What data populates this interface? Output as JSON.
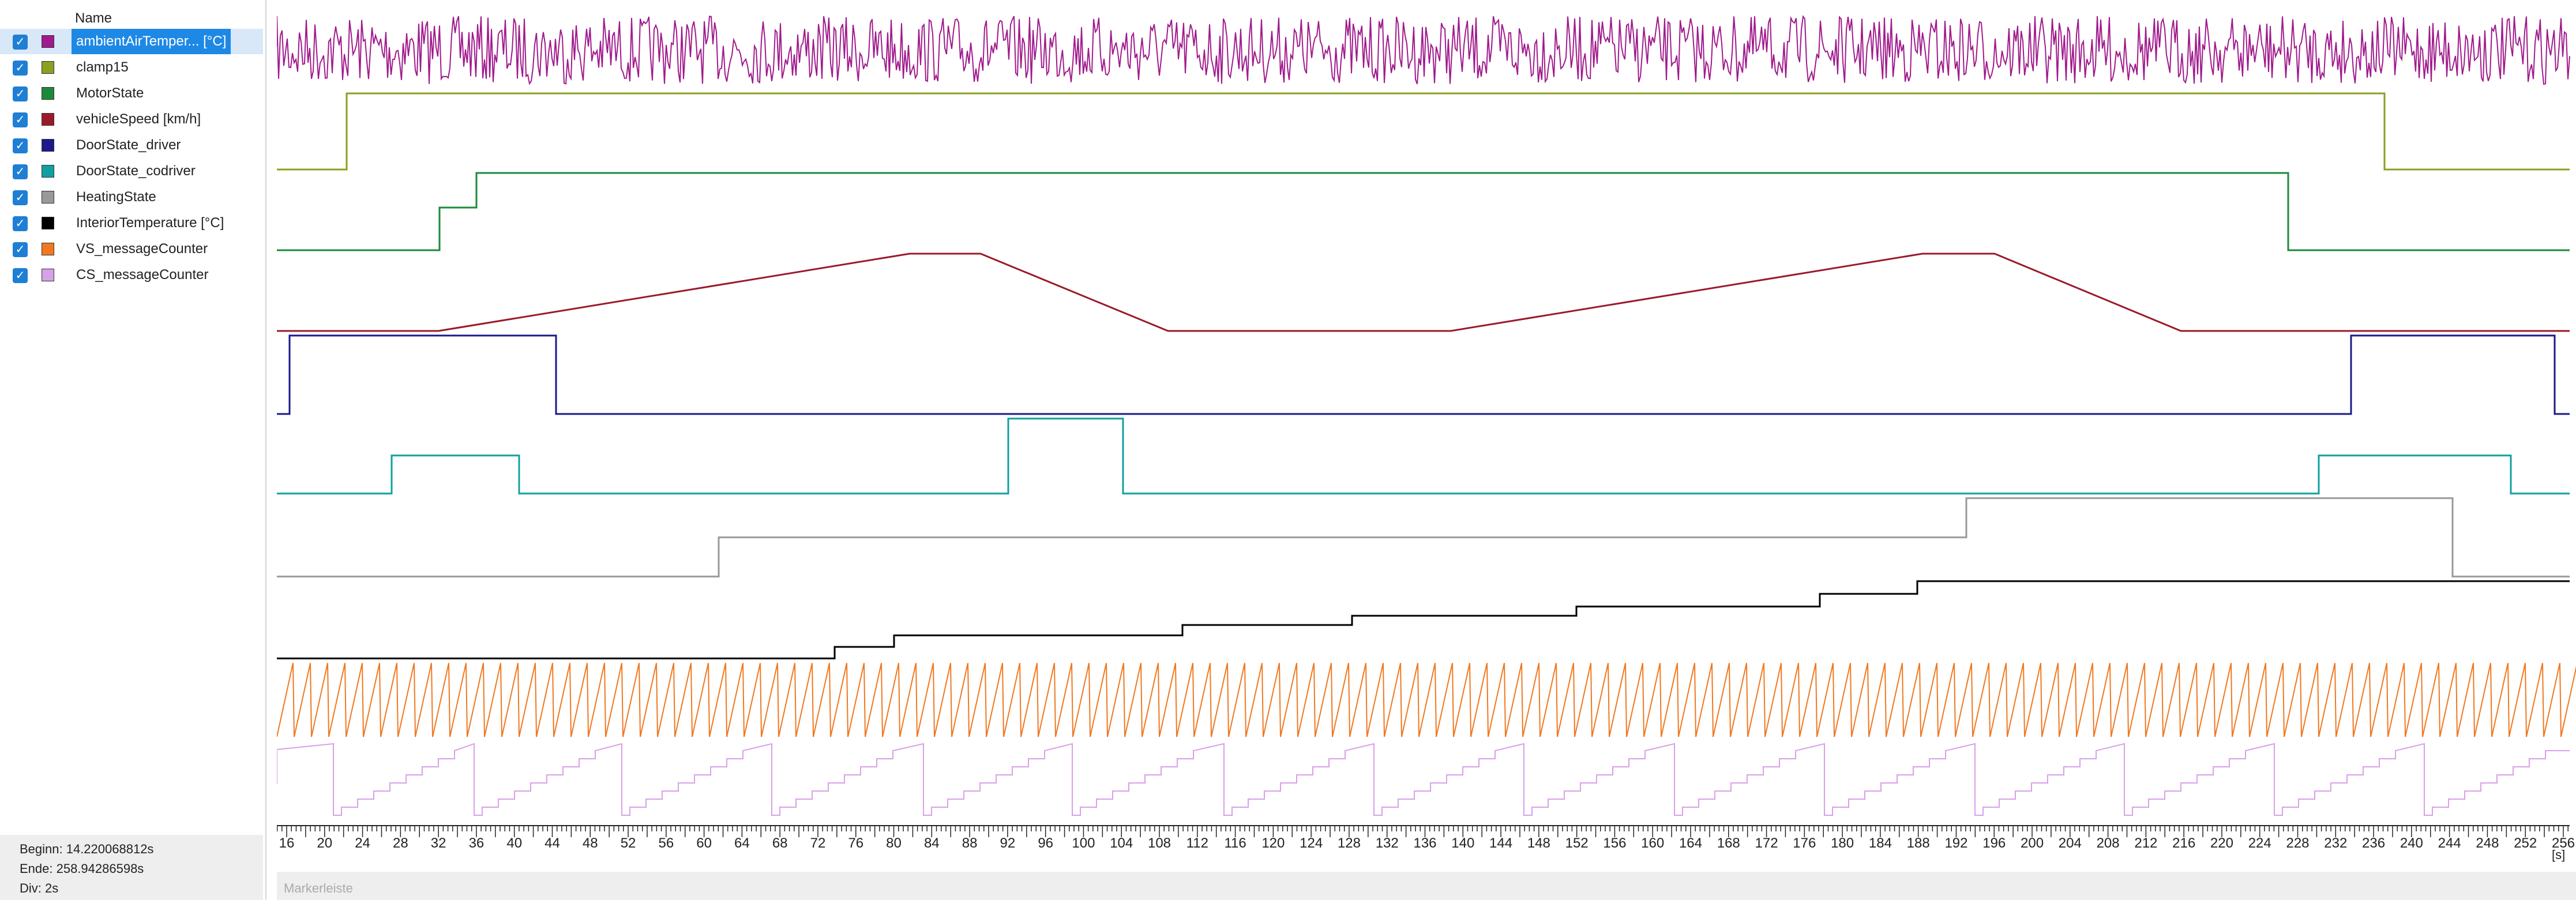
{
  "signal_list": {
    "header": "Name",
    "signals": [
      {
        "label": "ambientAirTemper... [°C]",
        "color": "#a01a8c",
        "checked": true,
        "selected": true
      },
      {
        "label": "clamp15",
        "color": "#8aa020",
        "checked": true
      },
      {
        "label": "MotorState",
        "color": "#1a8a3a",
        "checked": true
      },
      {
        "label": "vehicleSpeed [km/h]",
        "color": "#9a1a2a",
        "checked": true
      },
      {
        "label": "DoorState_driver",
        "color": "#1a1a8a",
        "checked": true
      },
      {
        "label": "DoorState_codriver",
        "color": "#10a0a0",
        "checked": true
      },
      {
        "label": "HeatingState",
        "color": "#999999",
        "checked": true
      },
      {
        "label": "InteriorTemperature [°C]",
        "color": "#000000",
        "checked": true
      },
      {
        "label": "VS_messageCounter",
        "color": "#f07820",
        "checked": true
      },
      {
        "label": "CS_messageCounter",
        "color": "#d8a0e8",
        "checked": true
      }
    ]
  },
  "status": {
    "begin": "Beginn: 14.220068812s",
    "end": "Ende: 258.94286598s",
    "div": "Div: 2s"
  },
  "time_axis": {
    "unit": "[s]",
    "ticks": [
      "16",
      "20",
      "24",
      "28",
      "32",
      "36",
      "40",
      "44",
      "48",
      "52",
      "56",
      "60",
      "64",
      "68",
      "72",
      "76",
      "80",
      "84",
      "88",
      "92",
      "96",
      "100",
      "104",
      "108",
      "112",
      "116",
      "120",
      "124",
      "128",
      "132",
      "136",
      "140",
      "144",
      "148",
      "152",
      "156",
      "160",
      "164",
      "168",
      "172",
      "176",
      "180",
      "184",
      "188",
      "192",
      "196",
      "200",
      "204",
      "208",
      "212",
      "216",
      "220",
      "224",
      "228",
      "232",
      "236",
      "240",
      "244",
      "248",
      "252",
      "256"
    ]
  },
  "marker_bar": {
    "label": "Markerleiste"
  }
}
